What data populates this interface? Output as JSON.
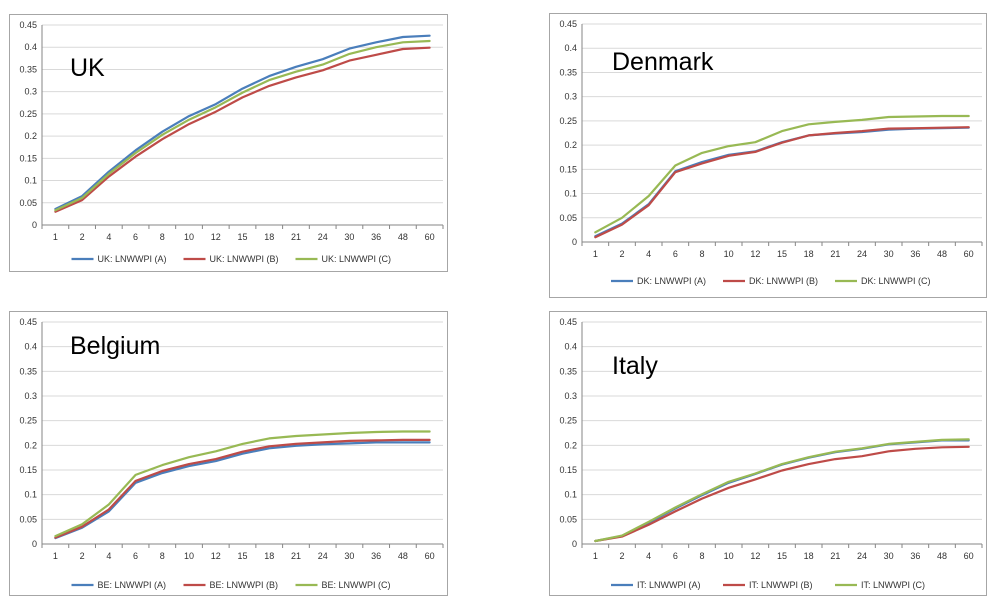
{
  "chart_data": [
    {
      "type": "line",
      "title": "UK",
      "x": [
        "1",
        "2",
        "4",
        "6",
        "8",
        "10",
        "12",
        "15",
        "18",
        "21",
        "24",
        "30",
        "36",
        "48",
        "60"
      ],
      "yticks": [
        "0",
        "0.05",
        "0.1",
        "0.15",
        "0.2",
        "0.25",
        "0.3",
        "0.35",
        "0.4",
        "0.45"
      ],
      "ylim": [
        0,
        0.45
      ],
      "grid": true,
      "legend_position": "bottom",
      "series": [
        {
          "name": "UK: LNWWPI (A)",
          "color": "#4a7ebb",
          "values": [
            0.036,
            0.065,
            0.12,
            0.168,
            0.21,
            0.245,
            0.272,
            0.307,
            0.335,
            0.356,
            0.373,
            0.397,
            0.411,
            0.423,
            0.426
          ]
        },
        {
          "name": "UK: LNWWPI (B)",
          "color": "#be4b48",
          "values": [
            0.03,
            0.056,
            0.109,
            0.154,
            0.193,
            0.227,
            0.255,
            0.287,
            0.313,
            0.332,
            0.348,
            0.37,
            0.383,
            0.396,
            0.399
          ]
        },
        {
          "name": "UK: LNWWPI (C)",
          "color": "#98b954",
          "values": [
            0.033,
            0.061,
            0.115,
            0.162,
            0.203,
            0.237,
            0.265,
            0.298,
            0.326,
            0.345,
            0.361,
            0.385,
            0.4,
            0.411,
            0.414
          ]
        }
      ]
    },
    {
      "type": "line",
      "title": "Denmark",
      "x": [
        "1",
        "2",
        "4",
        "6",
        "8",
        "10",
        "12",
        "15",
        "18",
        "21",
        "24",
        "30",
        "36",
        "48",
        "60"
      ],
      "yticks": [
        "0",
        "0.05",
        "0.1",
        "0.15",
        "0.2",
        "0.25",
        "0.3",
        "0.35",
        "0.4",
        "0.45"
      ],
      "ylim": [
        0,
        0.45
      ],
      "grid": true,
      "legend_position": "bottom",
      "series": [
        {
          "name": "DK: LNWWPI (A)",
          "color": "#4a7ebb",
          "values": [
            0.012,
            0.038,
            0.078,
            0.146,
            0.165,
            0.18,
            0.187,
            0.206,
            0.22,
            0.224,
            0.227,
            0.232,
            0.234,
            0.235,
            0.236
          ]
        },
        {
          "name": "DK: LNWWPI (B)",
          "color": "#be4b48",
          "values": [
            0.01,
            0.036,
            0.076,
            0.144,
            0.162,
            0.178,
            0.186,
            0.205,
            0.22,
            0.225,
            0.229,
            0.234,
            0.235,
            0.236,
            0.237
          ]
        },
        {
          "name": "DK: LNWWPI (C)",
          "color": "#98b954",
          "values": [
            0.02,
            0.05,
            0.095,
            0.158,
            0.184,
            0.198,
            0.206,
            0.229,
            0.243,
            0.248,
            0.252,
            0.258,
            0.259,
            0.26,
            0.26
          ]
        }
      ]
    },
    {
      "type": "line",
      "title": "Belgium",
      "x": [
        "1",
        "2",
        "4",
        "6",
        "8",
        "10",
        "12",
        "15",
        "18",
        "21",
        "24",
        "30",
        "36",
        "48",
        "60"
      ],
      "yticks": [
        "0",
        "0.05",
        "0.1",
        "0.15",
        "0.2",
        "0.25",
        "0.3",
        "0.35",
        "0.4",
        "0.45"
      ],
      "ylim": [
        0,
        0.45
      ],
      "grid": true,
      "legend_position": "bottom",
      "series": [
        {
          "name": "BE: LNWWPI (A)",
          "color": "#4a7ebb",
          "values": [
            0.012,
            0.033,
            0.066,
            0.124,
            0.144,
            0.158,
            0.168,
            0.183,
            0.194,
            0.199,
            0.202,
            0.204,
            0.206,
            0.206,
            0.206
          ]
        },
        {
          "name": "BE: LNWWPI (B)",
          "color": "#be4b48",
          "values": [
            0.013,
            0.035,
            0.07,
            0.128,
            0.148,
            0.162,
            0.172,
            0.187,
            0.198,
            0.203,
            0.206,
            0.209,
            0.21,
            0.211,
            0.211
          ]
        },
        {
          "name": "BE: LNWWPI (C)",
          "color": "#98b954",
          "values": [
            0.016,
            0.04,
            0.08,
            0.14,
            0.16,
            0.176,
            0.188,
            0.203,
            0.214,
            0.219,
            0.222,
            0.225,
            0.227,
            0.228,
            0.228
          ]
        }
      ]
    },
    {
      "type": "line",
      "title": "Italy",
      "x": [
        "1",
        "2",
        "4",
        "6",
        "8",
        "10",
        "12",
        "15",
        "18",
        "21",
        "24",
        "30",
        "36",
        "48",
        "60"
      ],
      "yticks": [
        "0",
        "0.05",
        "0.1",
        "0.15",
        "0.2",
        "0.25",
        "0.3",
        "0.35",
        "0.4",
        "0.45"
      ],
      "ylim": [
        0,
        0.45
      ],
      "grid": true,
      "legend_position": "bottom",
      "series": [
        {
          "name": "IT: LNWWPI (A)",
          "color": "#4a7ebb",
          "values": [
            0.006,
            0.016,
            0.043,
            0.072,
            0.099,
            0.124,
            0.142,
            0.161,
            0.175,
            0.186,
            0.193,
            0.202,
            0.206,
            0.21,
            0.21
          ]
        },
        {
          "name": "IT: LNWWPI (B)",
          "color": "#be4b48",
          "values": [
            0.006,
            0.015,
            0.039,
            0.066,
            0.092,
            0.114,
            0.131,
            0.149,
            0.162,
            0.172,
            0.178,
            0.188,
            0.193,
            0.196,
            0.197
          ]
        },
        {
          "name": "IT: LNWWPI (C)",
          "color": "#98b954",
          "values": [
            0.006,
            0.017,
            0.045,
            0.074,
            0.101,
            0.126,
            0.143,
            0.162,
            0.176,
            0.187,
            0.194,
            0.203,
            0.207,
            0.211,
            0.212
          ]
        }
      ]
    }
  ]
}
